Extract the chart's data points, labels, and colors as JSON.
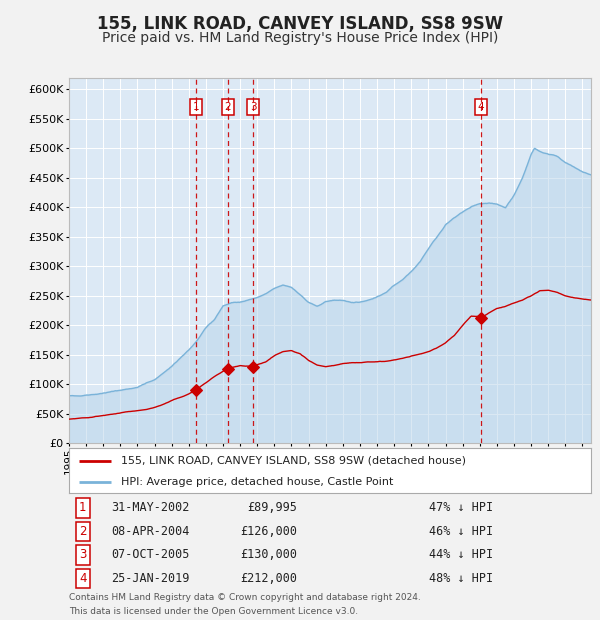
{
  "title": "155, LINK ROAD, CANVEY ISLAND, SS8 9SW",
  "subtitle": "Price paid vs. HM Land Registry's House Price Index (HPI)",
  "title_fontsize": 12,
  "subtitle_fontsize": 10,
  "bg_color": "#dce9f5",
  "grid_color": "#ffffff",
  "hpi_color": "#7ab3d9",
  "hpi_fill_color": "#b8d4ea",
  "price_color": "#cc0000",
  "fig_bg_color": "#f2f2f2",
  "ylim": [
    0,
    620000
  ],
  "yticks": [
    0,
    50000,
    100000,
    150000,
    200000,
    250000,
    300000,
    350000,
    400000,
    450000,
    500000,
    550000,
    600000
  ],
  "purchases": [
    {
      "label": "1",
      "date": "31-MAY-2002",
      "price": 89995,
      "year": 2002.42
    },
    {
      "label": "2",
      "date": "08-APR-2004",
      "price": 126000,
      "year": 2004.27
    },
    {
      "label": "3",
      "date": "07-OCT-2005",
      "price": 130000,
      "year": 2005.77
    },
    {
      "label": "4",
      "date": "25-JAN-2019",
      "price": 212000,
      "year": 2019.07
    }
  ],
  "legend_line1": "155, LINK ROAD, CANVEY ISLAND, SS8 9SW (detached house)",
  "legend_line2": "HPI: Average price, detached house, Castle Point",
  "table_rows": [
    [
      "1",
      "31-MAY-2002",
      "£89,995",
      "47% ↓ HPI"
    ],
    [
      "2",
      "08-APR-2004",
      "£126,000",
      "46% ↓ HPI"
    ],
    [
      "3",
      "07-OCT-2005",
      "£130,000",
      "44% ↓ HPI"
    ],
    [
      "4",
      "25-JAN-2019",
      "£212,000",
      "48% ↓ HPI"
    ]
  ],
  "footnote1": "Contains HM Land Registry data © Crown copyright and database right 2024.",
  "footnote2": "This data is licensed under the Open Government Licence v3.0.",
  "xmin": 1995,
  "xmax": 2025.5,
  "hpi_keypoints_x": [
    1995,
    1996,
    1997,
    1998,
    1999,
    2000,
    2001,
    2002,
    2002.5,
    2003,
    2003.5,
    2004,
    2004.5,
    2005,
    2005.5,
    2006,
    2006.5,
    2007,
    2007.5,
    2008,
    2008.5,
    2009,
    2009.5,
    2010,
    2010.5,
    2011,
    2011.5,
    2012,
    2012.5,
    2013,
    2013.5,
    2014,
    2014.5,
    2015,
    2015.5,
    2016,
    2016.5,
    2017,
    2017.5,
    2018,
    2018.5,
    2019,
    2019.5,
    2020,
    2020.5,
    2021,
    2021.5,
    2022,
    2022.2,
    2022.5,
    2023,
    2023.5,
    2024,
    2024.5,
    2025,
    2025.5
  ],
  "hpi_keypoints_y": [
    80000,
    82000,
    85000,
    90000,
    95000,
    108000,
    130000,
    158000,
    175000,
    195000,
    210000,
    233000,
    238000,
    240000,
    243000,
    247000,
    253000,
    262000,
    268000,
    265000,
    252000,
    238000,
    232000,
    240000,
    243000,
    241000,
    239000,
    240000,
    243000,
    248000,
    255000,
    268000,
    278000,
    292000,
    308000,
    330000,
    350000,
    370000,
    382000,
    392000,
    400000,
    406000,
    408000,
    405000,
    400000,
    420000,
    450000,
    490000,
    500000,
    495000,
    490000,
    488000,
    475000,
    468000,
    460000,
    455000
  ],
  "price_keypoints_x": [
    1995,
    1995.5,
    1996,
    1996.5,
    1997,
    1997.5,
    1998,
    1998.5,
    1999,
    1999.5,
    2000,
    2000.5,
    2001,
    2001.5,
    2002,
    2002.4,
    2002.5,
    2003,
    2003.5,
    2004,
    2004.25,
    2004.5,
    2005,
    2005.75,
    2006,
    2006.5,
    2007,
    2007.5,
    2008,
    2008.5,
    2009,
    2009.5,
    2010,
    2010.5,
    2011,
    2011.5,
    2012,
    2012.5,
    2013,
    2013.5,
    2014,
    2014.5,
    2015,
    2015.5,
    2016,
    2016.5,
    2017,
    2017.5,
    2018,
    2018.5,
    2019,
    2019.07,
    2019.5,
    2020,
    2020.5,
    2021,
    2021.5,
    2022,
    2022.5,
    2023,
    2023.5,
    2024,
    2024.5,
    2025,
    2025.5
  ],
  "price_keypoints_y": [
    41000,
    42000,
    43000,
    45000,
    47000,
    49000,
    51000,
    53000,
    55000,
    57000,
    61000,
    66000,
    72000,
    78000,
    84000,
    89995,
    92000,
    102000,
    113000,
    122000,
    126000,
    128000,
    132000,
    130000,
    133000,
    138000,
    148000,
    155000,
    157000,
    152000,
    140000,
    133000,
    130000,
    132000,
    135000,
    136000,
    137000,
    138000,
    138000,
    139000,
    141000,
    144000,
    148000,
    151000,
    156000,
    162000,
    170000,
    182000,
    200000,
    215000,
    215000,
    212000,
    220000,
    228000,
    232000,
    238000,
    242000,
    250000,
    258000,
    260000,
    256000,
    250000,
    247000,
    245000,
    243000
  ]
}
